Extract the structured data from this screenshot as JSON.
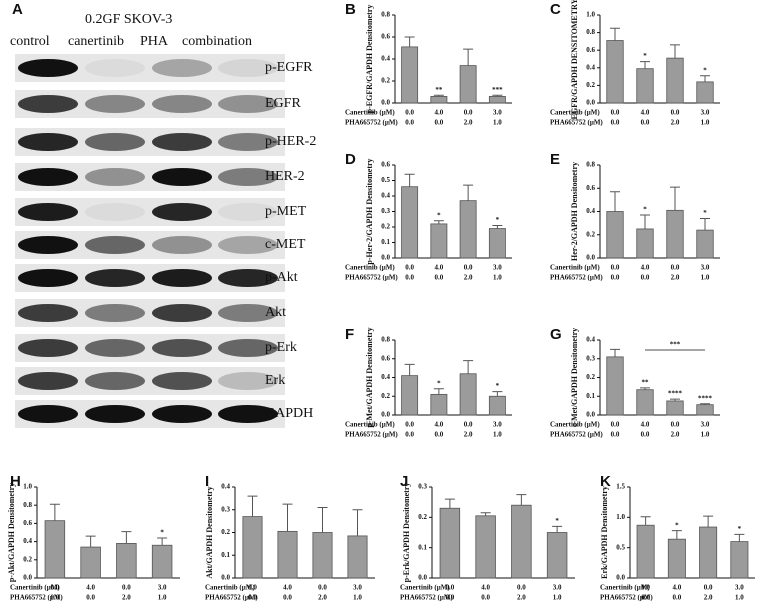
{
  "blot": {
    "panel": "A",
    "title": "0.2GF SKOV-3",
    "columns": [
      "control",
      "canertinib",
      "PHA",
      "combination"
    ],
    "rows": [
      "p-EGFR",
      "EGFR",
      "p-HER-2",
      "HER-2",
      "p-MET",
      "c-MET",
      "p-Akt",
      "Akt",
      "p-Erk",
      "Erk",
      "GAPDH"
    ]
  },
  "treatments": [
    {
      "name": "Canertinib  (μM)",
      "labels": [
        "0.0",
        "4.0",
        "0.0",
        "3.0"
      ]
    },
    {
      "name": "PHA665752 (μM)",
      "labels": [
        "0.0",
        "0.0",
        "2.0",
        "1.0"
      ]
    }
  ],
  "chart_data": [
    {
      "type": "bar",
      "panel": "B",
      "ylabel": "p-EGFR/GAPDH Densitometry",
      "values": [
        0.51,
        0.06,
        0.34,
        0.06
      ],
      "errors": [
        0.09,
        0.01,
        0.15,
        0.01
      ],
      "ylim": [
        0,
        0.8
      ],
      "yticks": [
        {
          "value": 0,
          "label": "0.0"
        },
        {
          "value": 0.2,
          "label": "0.2"
        },
        {
          "value": 0.4,
          "label": "0.4"
        },
        {
          "value": 0.6,
          "label": "0.6"
        },
        {
          "value": 0.8,
          "label": "0.8"
        }
      ],
      "annotations": [
        {
          "index": 1,
          "text": "**"
        },
        {
          "index": 3,
          "text": "***"
        }
      ],
      "color": "#9b9b9b"
    },
    {
      "type": "bar",
      "panel": "C",
      "ylabel": "EGFR/GAPDH DENSITOMETRY",
      "values": [
        0.71,
        0.39,
        0.51,
        0.24
      ],
      "errors": [
        0.14,
        0.08,
        0.15,
        0.07
      ],
      "ylim": [
        0,
        1
      ],
      "yticks": [
        {
          "value": 0,
          "label": "0.0"
        },
        {
          "value": 0.2,
          "label": "0.2"
        },
        {
          "value": 0.4,
          "label": "0.4"
        },
        {
          "value": 0.6,
          "label": "0.6"
        },
        {
          "value": 0.8,
          "label": "0.8"
        },
        {
          "value": 1,
          "label": "1.0"
        }
      ],
      "annotations": [
        {
          "index": 1,
          "text": "*"
        },
        {
          "index": 3,
          "text": "*"
        }
      ],
      "color": "#9b9b9b"
    },
    {
      "type": "bar",
      "panel": "D",
      "ylabel": "p-Her-2/GAPDH Densitometry",
      "values": [
        0.46,
        0.22,
        0.37,
        0.19
      ],
      "errors": [
        0.08,
        0.02,
        0.1,
        0.02
      ],
      "ylim": [
        0,
        0.6
      ],
      "yticks": [
        {
          "value": 0,
          "label": "0.0"
        },
        {
          "value": 0.1,
          "label": "0.1"
        },
        {
          "value": 0.2,
          "label": "0.2"
        },
        {
          "value": 0.3,
          "label": "0.3"
        },
        {
          "value": 0.4,
          "label": "0.4"
        },
        {
          "value": 0.5,
          "label": "0.5"
        },
        {
          "value": 0.6,
          "label": "0.6"
        }
      ],
      "annotations": [
        {
          "index": 1,
          "text": "*"
        },
        {
          "index": 3,
          "text": "*"
        }
      ],
      "color": "#9b9b9b"
    },
    {
      "type": "bar",
      "panel": "E",
      "ylabel": "Her-2/GAPDH Densitometry",
      "values": [
        0.4,
        0.25,
        0.41,
        0.24
      ],
      "errors": [
        0.17,
        0.12,
        0.2,
        0.1
      ],
      "ylim": [
        0,
        0.8
      ],
      "yticks": [
        {
          "value": 0,
          "label": "0.0"
        },
        {
          "value": 0.2,
          "label": "0.2"
        },
        {
          "value": 0.4,
          "label": "0.4"
        },
        {
          "value": 0.6,
          "label": "0.6"
        },
        {
          "value": 0.8,
          "label": "0.8"
        }
      ],
      "annotations": [
        {
          "index": 1,
          "text": "*"
        },
        {
          "index": 3,
          "text": "*"
        }
      ],
      "color": "#9b9b9b"
    },
    {
      "type": "bar",
      "panel": "F",
      "ylabel": "p-Met/GAPDH Densitometry",
      "values": [
        0.42,
        0.22,
        0.44,
        0.2
      ],
      "errors": [
        0.12,
        0.06,
        0.14,
        0.05
      ],
      "ylim": [
        0,
        0.8
      ],
      "yticks": [
        {
          "value": 0,
          "label": "0.0"
        },
        {
          "value": 0.2,
          "label": "0.2"
        },
        {
          "value": 0.4,
          "label": "0.4"
        },
        {
          "value": 0.6,
          "label": "0.6"
        },
        {
          "value": 0.8,
          "label": "0.8"
        }
      ],
      "annotations": [
        {
          "index": 1,
          "text": "*"
        },
        {
          "index": 3,
          "text": "*"
        }
      ],
      "color": "#9b9b9b"
    },
    {
      "type": "bar",
      "panel": "G",
      "ylabel": "c-Met/GAPDH Densitometry",
      "values": [
        0.31,
        0.135,
        0.075,
        0.055
      ],
      "errors": [
        0.04,
        0.01,
        0.01,
        0.005
      ],
      "ylim": [
        0,
        0.4
      ],
      "yticks": [
        {
          "value": 0,
          "label": "0.0"
        },
        {
          "value": 0.1,
          "label": "0.1"
        },
        {
          "value": 0.2,
          "label": "0.2"
        },
        {
          "value": 0.3,
          "label": "0.3"
        },
        {
          "value": 0.4,
          "label": "0.4"
        }
      ],
      "annotations": [
        {
          "index": 1,
          "text": "**"
        },
        {
          "index": 2,
          "text": "****"
        },
        {
          "index": 3,
          "text": "****"
        }
      ],
      "bracket": {
        "from": 1,
        "to": 3,
        "text": "***"
      },
      "color": "#9b9b9b"
    },
    {
      "type": "bar",
      "panel": "H",
      "ylabel": "p-Akt/GAPDH Densitometry",
      "values": [
        0.63,
        0.34,
        0.38,
        0.36
      ],
      "errors": [
        0.18,
        0.12,
        0.13,
        0.08
      ],
      "ylim": [
        0,
        1
      ],
      "yticks": [
        {
          "value": 0,
          "label": "0.0"
        },
        {
          "value": 0.2,
          "label": "0.2"
        },
        {
          "value": 0.4,
          "label": "0.4"
        },
        {
          "value": 0.6,
          "label": "0.6"
        },
        {
          "value": 0.8,
          "label": "0.8"
        },
        {
          "value": 1,
          "label": "1.0"
        }
      ],
      "annotations": [
        {
          "index": 3,
          "text": "*"
        }
      ],
      "color": "#9b9b9b"
    },
    {
      "type": "bar",
      "panel": "I",
      "ylabel": "Akt/GAPDH Densitometry",
      "values": [
        0.27,
        0.205,
        0.2,
        0.185
      ],
      "errors": [
        0.09,
        0.12,
        0.11,
        0.115
      ],
      "ylim": [
        0,
        0.4
      ],
      "yticks": [
        {
          "value": 0,
          "label": "0.0"
        },
        {
          "value": 0.1,
          "label": "0.1"
        },
        {
          "value": 0.2,
          "label": "0.2"
        },
        {
          "value": 0.3,
          "label": "0.3"
        },
        {
          "value": 0.4,
          "label": "0.4"
        }
      ],
      "annotations": [],
      "color": "#9b9b9b"
    },
    {
      "type": "bar",
      "panel": "J",
      "ylabel": "p-Erk/GAPDH Densitometry",
      "values": [
        0.23,
        0.205,
        0.24,
        0.15
      ],
      "errors": [
        0.03,
        0.01,
        0.035,
        0.02
      ],
      "ylim": [
        0,
        0.3
      ],
      "yticks": [
        {
          "value": 0,
          "label": "0.0"
        },
        {
          "value": 0.1,
          "label": "0.1"
        },
        {
          "value": 0.2,
          "label": "0.2"
        },
        {
          "value": 0.3,
          "label": "0.3"
        }
      ],
      "annotations": [
        {
          "index": 3,
          "text": "*"
        }
      ],
      "color": "#9b9b9b"
    },
    {
      "type": "bar",
      "panel": "K",
      "ylabel": "Erk/GAPDH Densitometry",
      "values": [
        0.87,
        0.64,
        0.84,
        0.6
      ],
      "errors": [
        0.14,
        0.14,
        0.18,
        0.12
      ],
      "ylim": [
        0,
        1.5
      ],
      "yticks": [
        {
          "value": 0,
          "label": "0.0"
        },
        {
          "value": 0.5,
          "label": "0.5"
        },
        {
          "value": 1,
          "label": "1.0"
        },
        {
          "value": 1.5,
          "label": "1.5"
        }
      ],
      "annotations": [
        {
          "index": 1,
          "text": "*"
        },
        {
          "index": 3,
          "text": "*"
        }
      ],
      "color": "#9b9b9b"
    }
  ]
}
